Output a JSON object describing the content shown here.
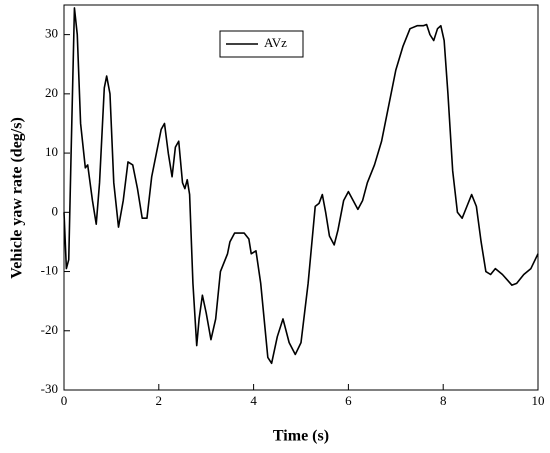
{
  "chart_data": {
    "type": "line",
    "xlabel": "Time (s)",
    "ylabel": "Vehicle yaw rate (deg/s)",
    "xlim": [
      0,
      10
    ],
    "ylim": [
      -30,
      35
    ],
    "xticks": [
      0,
      2,
      4,
      6,
      8,
      10
    ],
    "yticks": [
      -30,
      -20,
      -10,
      0,
      10,
      20,
      30
    ],
    "legend": "upper center",
    "series": [
      {
        "name": "AVz",
        "color": "#000000",
        "x": [
          0,
          0.05,
          0.1,
          0.15,
          0.22,
          0.28,
          0.35,
          0.45,
          0.5,
          0.6,
          0.68,
          0.75,
          0.85,
          0.9,
          0.97,
          1.05,
          1.15,
          1.25,
          1.35,
          1.45,
          1.55,
          1.65,
          1.75,
          1.85,
          1.95,
          2.05,
          2.12,
          2.2,
          2.28,
          2.35,
          2.42,
          2.5,
          2.55,
          2.6,
          2.65,
          2.72,
          2.8,
          2.85,
          2.92,
          3.0,
          3.1,
          3.2,
          3.3,
          3.45,
          3.5,
          3.6,
          3.8,
          3.9,
          3.95,
          4.05,
          4.15,
          4.3,
          4.38,
          4.5,
          4.62,
          4.75,
          4.88,
          5.0,
          5.15,
          5.3,
          5.38,
          5.45,
          5.52,
          5.6,
          5.7,
          5.78,
          5.9,
          6.0,
          6.1,
          6.2,
          6.3,
          6.4,
          6.55,
          6.7,
          6.85,
          7.0,
          7.15,
          7.3,
          7.45,
          7.58,
          7.65,
          7.72,
          7.8,
          7.88,
          7.95,
          8.02,
          8.1,
          8.2,
          8.3,
          8.4,
          8.5,
          8.6,
          8.7,
          8.8,
          8.9,
          9.0,
          9.1,
          9.25,
          9.45,
          9.55,
          9.7,
          9.85,
          10.0
        ],
        "values": [
          0,
          -9.5,
          -8,
          10,
          34.5,
          30,
          15,
          7.5,
          8,
          2,
          -2,
          5,
          21,
          23,
          20,
          5,
          -2.5,
          2,
          8.5,
          8,
          4,
          -1,
          -1,
          6,
          10,
          14,
          15,
          10,
          6,
          11,
          12,
          5,
          4,
          5.5,
          3,
          -12,
          -22.5,
          -18,
          -14,
          -17,
          -21.5,
          -18,
          -10,
          -7,
          -5,
          -3.5,
          -3.5,
          -4.5,
          -7,
          -6.5,
          -12,
          -24.5,
          -25.5,
          -21,
          -18,
          -22,
          -24,
          -22,
          -12,
          1,
          1.5,
          3,
          0,
          -4,
          -5.5,
          -3,
          2,
          3.5,
          2,
          0.5,
          2,
          5,
          8,
          12,
          18,
          24,
          28,
          31,
          31.5,
          31.5,
          31.7,
          30,
          29,
          31,
          31.5,
          29,
          20,
          7,
          0,
          -1,
          1,
          3,
          1,
          -5,
          -10,
          -10.5,
          -9.5,
          -10.5,
          -12.3,
          -12,
          -10.5,
          -9.5,
          -7
        ]
      }
    ]
  }
}
